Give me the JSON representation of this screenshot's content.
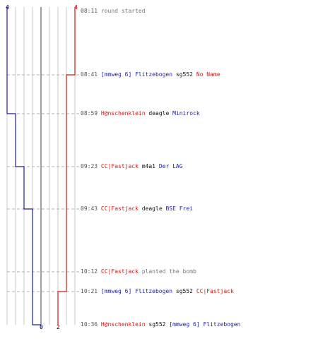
{
  "scale": {
    "top_left_label": "4",
    "top_right_label": "4",
    "bottom_mid_label": "0",
    "bottom_red_label": "2"
  },
  "team_colors": {
    "blue": "#1c1ca8",
    "red": "#d41616"
  },
  "events": [
    {
      "time": "08:11",
      "parts": [
        {
          "text": "round started",
          "color": "gray"
        }
      ]
    },
    {
      "time": "08:41",
      "parts": [
        {
          "text": "[mmweg 6] Flitzebogen",
          "color": "blue"
        },
        {
          "text": "sg552",
          "color": "black"
        },
        {
          "text": "No Name",
          "color": "red"
        }
      ]
    },
    {
      "time": "08:59",
      "parts": [
        {
          "text": "H@nschenklein",
          "color": "red"
        },
        {
          "text": "deagle",
          "color": "black"
        },
        {
          "text": "Minirock",
          "color": "blue"
        }
      ]
    },
    {
      "time": "09:23",
      "parts": [
        {
          "text": "CC|Fastjack",
          "color": "red"
        },
        {
          "text": "m4a1",
          "color": "black"
        },
        {
          "text": "Der LAG",
          "color": "blue"
        }
      ]
    },
    {
      "time": "09:43",
      "parts": [
        {
          "text": "CC|Fastjack",
          "color": "red"
        },
        {
          "text": "deagle",
          "color": "black"
        },
        {
          "text": "BSE Frei",
          "color": "blue"
        }
      ]
    },
    {
      "time": "10:12",
      "parts": [
        {
          "text": "CC|Fastjack",
          "color": "red"
        },
        {
          "text": "planted the bomb",
          "color": "gray"
        }
      ]
    },
    {
      "time": "10:21",
      "parts": [
        {
          "text": "[mmweg 6] Flitzebogen",
          "color": "blue"
        },
        {
          "text": "sg552",
          "color": "black"
        },
        {
          "text": "CC|Fastjack",
          "color": "red"
        }
      ]
    },
    {
      "time": "10:36",
      "parts": [
        {
          "text": "H@nschenklein",
          "color": "red"
        },
        {
          "text": "sg552",
          "color": "black"
        },
        {
          "text": "[mmweg 6] Flitzebogen",
          "color": "blue"
        }
      ]
    }
  ],
  "chart_data": {
    "type": "line",
    "x": [
      "08:11",
      "08:41",
      "08:59",
      "09:23",
      "09:43",
      "10:12",
      "10:21",
      "10:36"
    ],
    "series": [
      {
        "values": [
          4,
          4,
          3,
          2,
          1,
          1,
          1,
          0
        ],
        "color": "#1c1ca8"
      },
      {
        "values": [
          4,
          3,
          3,
          3,
          3,
          3,
          2,
          2
        ],
        "color": "#d41616"
      }
    ],
    "ylim": [
      0,
      4
    ],
    "grid": true
  }
}
